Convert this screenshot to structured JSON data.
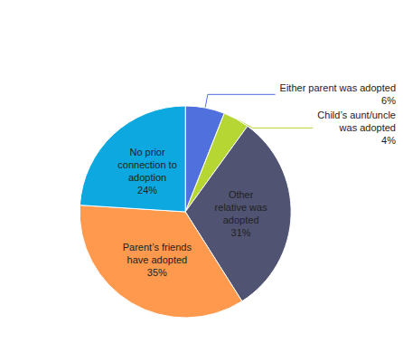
{
  "chart_data": {
    "type": "pie",
    "categories": [
      "Either parent was adopted",
      "Child’s aunt/uncle\nwas adopted",
      "Other\nrelative was\nadopted",
      "Parent’s friends\nhave adopted",
      "No prior\nconnection to\nadoption"
    ],
    "values": [
      6,
      4,
      31,
      35,
      24
    ],
    "value_labels": [
      "6%",
      "4%",
      "31%",
      "35%",
      "24%"
    ],
    "data_labels": true
  }
}
